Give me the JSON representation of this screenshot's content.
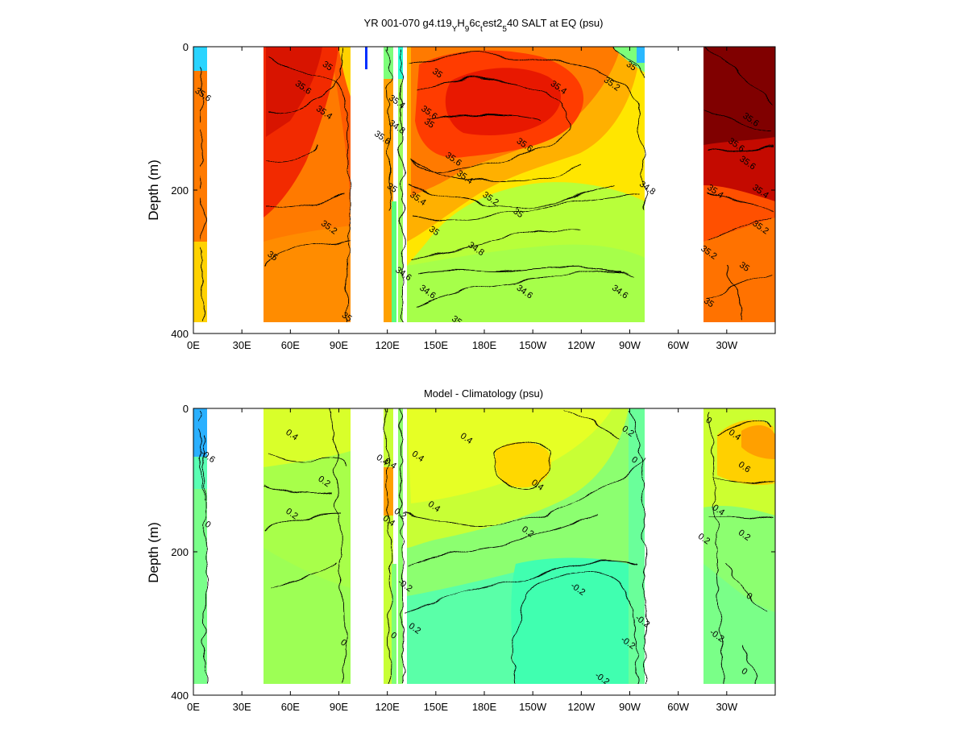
{
  "chart_data": [
    {
      "type": "heatmap",
      "title_parts": [
        "YR 001-070 g4.t19",
        "Y",
        "H",
        "9",
        "6c",
        "t",
        "est2",
        "5",
        "40 SALT at EQ (psu)"
      ],
      "xlabel": "",
      "ylabel": "Depth (m)",
      "x_ticks": [
        "0E",
        "30E",
        "60E",
        "90E",
        "120E",
        "150E",
        "180E",
        "150W",
        "120W",
        "90W",
        "60W",
        "30W"
      ],
      "x_tick_values": [
        0,
        30,
        60,
        90,
        120,
        150,
        180,
        210,
        240,
        270,
        300,
        330
      ],
      "xlim": [
        0,
        360
      ],
      "y_ticks": [
        "0",
        "200",
        "400"
      ],
      "y_tick_values": [
        0,
        200,
        400
      ],
      "ylim": [
        400,
        0
      ],
      "colormap": "jet",
      "contour_labels": [
        {
          "text": "35.6",
          "x": 5,
          "y": 70
        },
        {
          "text": "35.6",
          "x": 67,
          "y": 60
        },
        {
          "text": "35",
          "x": 82,
          "y": 30
        },
        {
          "text": "35.4",
          "x": 80,
          "y": 95
        },
        {
          "text": "35.2",
          "x": 83,
          "y": 255
        },
        {
          "text": "35",
          "x": 48,
          "y": 295
        },
        {
          "text": "35",
          "x": 94,
          "y": 380
        },
        {
          "text": "35.6",
          "x": 116,
          "y": 130
        },
        {
          "text": "35.4",
          "x": 125,
          "y": 80
        },
        {
          "text": "34.8",
          "x": 125,
          "y": 115
        },
        {
          "text": "35",
          "x": 122,
          "y": 200
        },
        {
          "text": "34.6",
          "x": 129,
          "y": 320
        },
        {
          "text": "35",
          "x": 150,
          "y": 40
        },
        {
          "text": "35.6",
          "x": 145,
          "y": 95
        },
        {
          "text": "35",
          "x": 145,
          "y": 110
        },
        {
          "text": "35.6",
          "x": 160,
          "y": 160
        },
        {
          "text": "35.4",
          "x": 167,
          "y": 185
        },
        {
          "text": "35.4",
          "x": 138,
          "y": 215
        },
        {
          "text": "35.2",
          "x": 183,
          "y": 215
        },
        {
          "text": "35",
          "x": 200,
          "y": 235
        },
        {
          "text": "35",
          "x": 148,
          "y": 260
        },
        {
          "text": "34.8",
          "x": 174,
          "y": 285
        },
        {
          "text": "34.6",
          "x": 144,
          "y": 345
        },
        {
          "text": "34.6",
          "x": 204,
          "y": 345
        },
        {
          "text": "34.6",
          "x": 263,
          "y": 345
        },
        {
          "text": "35",
          "x": 162,
          "y": 385
        },
        {
          "text": "35.6",
          "x": 204,
          "y": 140
        },
        {
          "text": "35.4",
          "x": 225,
          "y": 60
        },
        {
          "text": "35.2",
          "x": 258,
          "y": 55
        },
        {
          "text": "35",
          "x": 270,
          "y": 30
        },
        {
          "text": "34.8",
          "x": 280,
          "y": 200
        },
        {
          "text": "35.6",
          "x": 344,
          "y": 105
        },
        {
          "text": "35.6",
          "x": 335,
          "y": 140
        },
        {
          "text": "35.6",
          "x": 342,
          "y": 165
        },
        {
          "text": "35.4",
          "x": 322,
          "y": 205
        },
        {
          "text": "35.4",
          "x": 350,
          "y": 205
        },
        {
          "text": "35.2",
          "x": 350,
          "y": 255
        },
        {
          "text": "35.2",
          "x": 318,
          "y": 290
        },
        {
          "text": "35",
          "x": 340,
          "y": 310
        },
        {
          "text": "35",
          "x": 318,
          "y": 360
        }
      ]
    },
    {
      "type": "heatmap",
      "title": "Model - Climatology (psu)",
      "xlabel": "",
      "ylabel": "Depth (m)",
      "x_ticks": [
        "0E",
        "30E",
        "60E",
        "90E",
        "120E",
        "150E",
        "180E",
        "150W",
        "120W",
        "90W",
        "60W",
        "30W"
      ],
      "x_tick_values": [
        0,
        30,
        60,
        90,
        120,
        150,
        180,
        210,
        240,
        270,
        300,
        330
      ],
      "xlim": [
        0,
        360
      ],
      "y_ticks": [
        "0",
        "200",
        "400"
      ],
      "y_tick_values": [
        0,
        200,
        400
      ],
      "ylim": [
        400,
        0
      ],
      "colormap": "jet",
      "contour_labels": [
        {
          "text": "-0.6",
          "x": 8,
          "y": 70
        },
        {
          "text": "0",
          "x": 8,
          "y": 165
        },
        {
          "text": "0.4",
          "x": 60,
          "y": 40
        },
        {
          "text": "0.2",
          "x": 80,
          "y": 105
        },
        {
          "text": "0.2",
          "x": 60,
          "y": 150
        },
        {
          "text": "0",
          "x": 92,
          "y": 330
        },
        {
          "text": "0.4",
          "x": 116,
          "y": 75
        },
        {
          "text": "0.4",
          "x": 121,
          "y": 80
        },
        {
          "text": "0.4",
          "x": 120,
          "y": 160
        },
        {
          "text": "0.2",
          "x": 127,
          "y": 150
        },
        {
          "text": "-0.2",
          "x": 130,
          "y": 250
        },
        {
          "text": "0",
          "x": 123,
          "y": 320
        },
        {
          "text": "0.2",
          "x": 136,
          "y": 310
        },
        {
          "text": "0.4",
          "x": 138,
          "y": 70
        },
        {
          "text": "0.4",
          "x": 148,
          "y": 140
        },
        {
          "text": "0.4",
          "x": 168,
          "y": 45
        },
        {
          "text": "0.4",
          "x": 212,
          "y": 110
        },
        {
          "text": "0.2",
          "x": 206,
          "y": 175
        },
        {
          "text": "-0.2",
          "x": 237,
          "y": 255
        },
        {
          "text": "-0.2",
          "x": 252,
          "y": 380
        },
        {
          "text": "0.2",
          "x": 268,
          "y": 35
        },
        {
          "text": "0",
          "x": 272,
          "y": 75
        },
        {
          "text": "-0.2",
          "x": 268,
          "y": 330
        },
        {
          "text": "-0.2",
          "x": 277,
          "y": 300
        },
        {
          "text": "0",
          "x": 318,
          "y": 20
        },
        {
          "text": "0.4",
          "x": 334,
          "y": 40
        },
        {
          "text": "0.6",
          "x": 340,
          "y": 85
        },
        {
          "text": "0.4",
          "x": 324,
          "y": 145
        },
        {
          "text": "0.2",
          "x": 340,
          "y": 180
        },
        {
          "text": "0.2",
          "x": 315,
          "y": 185
        },
        {
          "text": "0",
          "x": 343,
          "y": 265
        },
        {
          "text": "-0.2",
          "x": 323,
          "y": 320
        },
        {
          "text": "0",
          "x": 340,
          "y": 370
        }
      ]
    }
  ]
}
